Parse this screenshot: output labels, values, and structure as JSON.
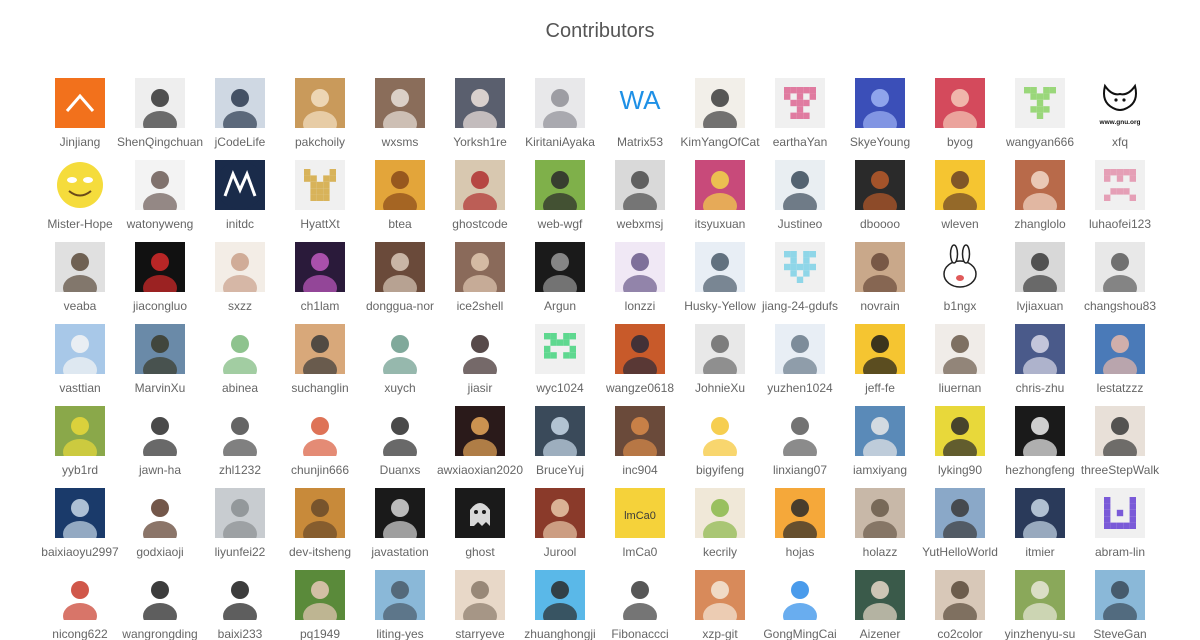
{
  "header": {
    "title": "Contributors"
  },
  "contributors": [
    {
      "login": "Jinjiang",
      "avatar": {
        "style": "chevron",
        "bg": "#f2711c",
        "fg": "#ffffff"
      }
    },
    {
      "login": "ShenQingchuan",
      "avatar": {
        "style": "photo",
        "bg": "#eeeeee",
        "fg": "#333333"
      }
    },
    {
      "login": "jCodeLife",
      "avatar": {
        "style": "photo",
        "bg": "#cfd8e3",
        "fg": "#2b3a4f"
      }
    },
    {
      "login": "pakchoily",
      "avatar": {
        "style": "photo",
        "bg": "#c99a5b",
        "fg": "#f3e1c4"
      }
    },
    {
      "login": "wxsms",
      "avatar": {
        "style": "photo",
        "bg": "#8a6d5a",
        "fg": "#e9e2da"
      }
    },
    {
      "login": "Yorksh1re",
      "avatar": {
        "style": "photo",
        "bg": "#5a5f6e",
        "fg": "#f0e4de"
      }
    },
    {
      "login": "KiritaniAyaka",
      "avatar": {
        "style": "photo",
        "bg": "#e8e8ea",
        "fg": "#8f8f96"
      }
    },
    {
      "login": "Matrix53",
      "avatar": {
        "style": "text",
        "text": "WA",
        "bg": "#ffffff",
        "fg": "#1e90e6"
      }
    },
    {
      "login": "KimYangOfCat",
      "avatar": {
        "style": "photo",
        "bg": "#f2efe9",
        "fg": "#3c3c3c"
      }
    },
    {
      "login": "earthaYan",
      "avatar": {
        "style": "identicon",
        "bg": "#f0f0f0",
        "fg": "#e07ba0",
        "pattern": [
          1,
          1,
          1,
          1,
          1,
          1,
          0,
          1,
          0,
          1,
          0,
          1,
          1,
          1,
          0,
          0,
          0,
          1,
          0,
          0,
          0,
          1,
          1,
          1,
          0
        ]
      }
    },
    {
      "login": "SkyeYoung",
      "avatar": {
        "style": "photo",
        "bg": "#3b4fb8",
        "fg": "#9fb3f5"
      }
    },
    {
      "login": "byog",
      "avatar": {
        "style": "photo",
        "bg": "#d44a5c",
        "fg": "#f5c9b8"
      }
    },
    {
      "login": "wangyan666",
      "avatar": {
        "style": "identicon",
        "bg": "#f0f0f0",
        "fg": "#9ad77a",
        "pattern": [
          1,
          1,
          0,
          1,
          1,
          0,
          1,
          1,
          1,
          0,
          0,
          0,
          1,
          0,
          0,
          0,
          1,
          1,
          1,
          0,
          0,
          0,
          1,
          0,
          0
        ]
      }
    },
    {
      "login": "xfq",
      "avatar": {
        "style": "gnu",
        "bg": "#ffffff",
        "fg": "#111111",
        "text": "www.gnu.org"
      }
    },
    {
      "login": "Mister-Hope",
      "avatar": {
        "style": "smiley",
        "bg": "#ffffff",
        "fg": "#f5dc3c"
      }
    },
    {
      "login": "watonyweng",
      "avatar": {
        "style": "photo",
        "bg": "#f3f3f3",
        "fg": "#6b5a55"
      }
    },
    {
      "login": "initdc",
      "avatar": {
        "style": "moto",
        "bg": "#1a2b4a",
        "fg": "#ffffff"
      }
    },
    {
      "login": "HyattXt",
      "avatar": {
        "style": "identicon",
        "bg": "#f0f0f0",
        "fg": "#d8b35a",
        "pattern": [
          1,
          0,
          0,
          0,
          1,
          1,
          1,
          0,
          1,
          1,
          0,
          1,
          1,
          1,
          0,
          0,
          1,
          1,
          1,
          0,
          0,
          1,
          1,
          1,
          0
        ]
      }
    },
    {
      "login": "btea",
      "avatar": {
        "style": "photo",
        "bg": "#e3a53a",
        "fg": "#8a4a1a"
      }
    },
    {
      "login": "ghostcode",
      "avatar": {
        "style": "photo",
        "bg": "#d8c8b0",
        "fg": "#b03030"
      }
    },
    {
      "login": "web-wgf",
      "avatar": {
        "style": "photo",
        "bg": "#7fb04a",
        "fg": "#2a2a2a"
      }
    },
    {
      "login": "webxmsj",
      "avatar": {
        "style": "photo",
        "bg": "#d9d9d9",
        "fg": "#4a4a4a"
      }
    },
    {
      "login": "itsyuxuan",
      "avatar": {
        "style": "photo",
        "bg": "#c84a7a",
        "fg": "#f2d34a"
      }
    },
    {
      "login": "Justineo",
      "avatar": {
        "style": "photo",
        "bg": "#e9eef2",
        "fg": "#3a4a5a"
      }
    },
    {
      "login": "dboooo",
      "avatar": {
        "style": "photo",
        "bg": "#2a2a2a",
        "fg": "#b85a2a"
      }
    },
    {
      "login": "wleven",
      "avatar": {
        "style": "photo",
        "bg": "#f5c531",
        "fg": "#6b4226"
      }
    },
    {
      "login": "zhanglolo",
      "avatar": {
        "style": "photo",
        "bg": "#b86a4a",
        "fg": "#f2d8c8"
      }
    },
    {
      "login": "luhaofei123",
      "avatar": {
        "style": "identicon",
        "bg": "#f0f0f0",
        "fg": "#e59fb6",
        "pattern": [
          1,
          1,
          1,
          1,
          1,
          1,
          0,
          1,
          0,
          1,
          0,
          0,
          0,
          0,
          0,
          0,
          1,
          1,
          1,
          0,
          1,
          0,
          0,
          0,
          1
        ]
      }
    },
    {
      "login": "veaba",
      "avatar": {
        "style": "photo",
        "bg": "#e0e0e0",
        "fg": "#5a4a3a"
      }
    },
    {
      "login": "jiacongluo",
      "avatar": {
        "style": "photo",
        "bg": "#111111",
        "fg": "#d62a2a"
      }
    },
    {
      "login": "sxzz",
      "avatar": {
        "style": "photo",
        "bg": "#f3ede6",
        "fg": "#c9a08a"
      }
    },
    {
      "login": "ch1lam",
      "avatar": {
        "style": "photo",
        "bg": "#2a1a3a",
        "fg": "#c05ac0"
      }
    },
    {
      "login": "donggua-nor",
      "avatar": {
        "style": "photo",
        "bg": "#6a4a3a",
        "fg": "#d9c8b8"
      }
    },
    {
      "login": "ice2shell",
      "avatar": {
        "style": "photo",
        "bg": "#8a6a5a",
        "fg": "#e0c8b0"
      }
    },
    {
      "login": "Argun",
      "avatar": {
        "style": "photo",
        "bg": "#1a1a1a",
        "fg": "#9a9a9a"
      }
    },
    {
      "login": "lonzzi",
      "avatar": {
        "style": "photo",
        "bg": "#f0e8f5",
        "fg": "#6a5a8a"
      }
    },
    {
      "login": "Husky-Yellow",
      "avatar": {
        "style": "photo",
        "bg": "#e8eef5",
        "fg": "#4a5a6a"
      }
    },
    {
      "login": "jiang-24-gdufs",
      "avatar": {
        "style": "identicon",
        "bg": "#f0f0f0",
        "fg": "#8fd6e8",
        "pattern": [
          1,
          1,
          0,
          1,
          1,
          0,
          1,
          0,
          1,
          0,
          1,
          1,
          1,
          1,
          1,
          0,
          1,
          0,
          1,
          0,
          0,
          0,
          1,
          0,
          0
        ]
      }
    },
    {
      "login": "novrain",
      "avatar": {
        "style": "photo",
        "bg": "#c9a88a",
        "fg": "#6a4a3a"
      }
    },
    {
      "login": "b1ngx",
      "avatar": {
        "style": "bunny",
        "bg": "#ffffff",
        "fg": "#222222"
      }
    },
    {
      "login": "lvjiaxuan",
      "avatar": {
        "style": "photo",
        "bg": "#d8d8d8",
        "fg": "#3a3a3a"
      }
    },
    {
      "login": "changshou83",
      "avatar": {
        "style": "photo",
        "bg": "#e8e8e8",
        "fg": "#5a5a5a"
      }
    },
    {
      "login": "vasttian",
      "avatar": {
        "style": "photo",
        "bg": "#a8c8e8",
        "fg": "#f5f5f5"
      }
    },
    {
      "login": "MarvinXu",
      "avatar": {
        "style": "photo",
        "bg": "#6a8aa8",
        "fg": "#3a3a2a"
      }
    },
    {
      "login": "abinea",
      "avatar": {
        "style": "photo",
        "bg": "#ffffff",
        "fg": "#7ab87a"
      }
    },
    {
      "login": "suchanglin",
      "avatar": {
        "style": "photo",
        "bg": "#d8a87a",
        "fg": "#3a3a3a"
      }
    },
    {
      "login": "xuych",
      "avatar": {
        "style": "photo",
        "bg": "#ffffff",
        "fg": "#6a9a8a"
      }
    },
    {
      "login": "jiasir",
      "avatar": {
        "style": "photo",
        "bg": "#ffffff",
        "fg": "#3a2a2a"
      }
    },
    {
      "login": "wyc1024",
      "avatar": {
        "style": "identicon",
        "bg": "#f0f0f0",
        "fg": "#5ed88f",
        "pattern": [
          1,
          1,
          0,
          1,
          1,
          0,
          1,
          1,
          1,
          0,
          1,
          0,
          0,
          0,
          1,
          1,
          1,
          0,
          1,
          1,
          0,
          0,
          0,
          0,
          0
        ]
      }
    },
    {
      "login": "wangze0618",
      "avatar": {
        "style": "photo",
        "bg": "#c85a2a",
        "fg": "#2a2a3a"
      }
    },
    {
      "login": "JohnieXu",
      "avatar": {
        "style": "photo",
        "bg": "#e8e8e8",
        "fg": "#6a6a6a"
      }
    },
    {
      "login": "yuzhen1024",
      "avatar": {
        "style": "photo",
        "bg": "#e8eef5",
        "fg": "#6a7a8a"
      }
    },
    {
      "login": "jeff-fe",
      "avatar": {
        "style": "photo",
        "bg": "#f5c531",
        "fg": "#1a1a1a"
      }
    },
    {
      "login": "liuernan",
      "avatar": {
        "style": "photo",
        "bg": "#f0ece8",
        "fg": "#6a5a4a"
      }
    },
    {
      "login": "chris-zhu",
      "avatar": {
        "style": "photo",
        "bg": "#4a5a8a",
        "fg": "#d8d8e8"
      }
    },
    {
      "login": "lestatzzz",
      "avatar": {
        "style": "photo",
        "bg": "#4a7ab8",
        "fg": "#e8b8a8"
      }
    },
    {
      "login": "yyb1rd",
      "avatar": {
        "style": "photo",
        "bg": "#8aa84a",
        "fg": "#e8d83a"
      }
    },
    {
      "login": "jawn-ha",
      "avatar": {
        "style": "photo",
        "bg": "#ffffff",
        "fg": "#2a2a2a"
      }
    },
    {
      "login": "zhl1232",
      "avatar": {
        "style": "photo",
        "bg": "#ffffff",
        "fg": "#4a4a4a"
      }
    },
    {
      "login": "chunjin666",
      "avatar": {
        "style": "photo",
        "bg": "#ffffff",
        "fg": "#d85a3a"
      }
    },
    {
      "login": "Duanxs",
      "avatar": {
        "style": "photo",
        "bg": "#ffffff",
        "fg": "#2a2a2a"
      }
    },
    {
      "login": "awxiaoxian2020",
      "avatar": {
        "style": "photo",
        "bg": "#2a1a1a",
        "fg": "#e8a85a"
      }
    },
    {
      "login": "BruceYuj",
      "avatar": {
        "style": "photo",
        "bg": "#3a4a5a",
        "fg": "#c8d8e8"
      }
    },
    {
      "login": "inc904",
      "avatar": {
        "style": "photo",
        "bg": "#6a4a3a",
        "fg": "#d88a4a"
      }
    },
    {
      "login": "bigyifeng",
      "avatar": {
        "style": "photo",
        "bg": "#ffffff",
        "fg": "#f5c531"
      }
    },
    {
      "login": "linxiang07",
      "avatar": {
        "style": "photo",
        "bg": "#ffffff",
        "fg": "#5a5a5a"
      }
    },
    {
      "login": "iamxiyang",
      "avatar": {
        "style": "photo",
        "bg": "#5a8ab8",
        "fg": "#e8e8e8"
      }
    },
    {
      "login": "lyking90",
      "avatar": {
        "style": "photo",
        "bg": "#e8d83a",
        "fg": "#2a2a2a"
      }
    },
    {
      "login": "hezhongfeng",
      "avatar": {
        "style": "photo",
        "bg": "#1a1a1a",
        "fg": "#f0f0f0"
      }
    },
    {
      "login": "threeStepWalk",
      "avatar": {
        "style": "photo",
        "bg": "#e8e0d8",
        "fg": "#3a3a3a"
      }
    },
    {
      "login": "baixiaoyu2997",
      "avatar": {
        "style": "photo",
        "bg": "#1a3a6a",
        "fg": "#c8d8e8"
      }
    },
    {
      "login": "godxiaoji",
      "avatar": {
        "style": "photo",
        "bg": "#ffffff",
        "fg": "#5a3a2a"
      }
    },
    {
      "login": "liyunfei22",
      "avatar": {
        "style": "photo",
        "bg": "#c8ccd0",
        "fg": "#8a8e92"
      }
    },
    {
      "login": "dev-itsheng",
      "avatar": {
        "style": "photo",
        "bg": "#c88a3a",
        "fg": "#6a4a2a"
      }
    },
    {
      "login": "javastation",
      "avatar": {
        "style": "photo",
        "bg": "#1a1a1a",
        "fg": "#d8d8d8"
      }
    },
    {
      "login": "ghost",
      "avatar": {
        "style": "ghost",
        "bg": "#1a1a1a",
        "fg": "#d8d8d8"
      }
    },
    {
      "login": "Jurool",
      "avatar": {
        "style": "photo",
        "bg": "#8a3a2a",
        "fg": "#e8c8a8"
      }
    },
    {
      "login": "lmCa0",
      "avatar": {
        "style": "text",
        "text": "lmCa0",
        "bg": "#f5d23a",
        "fg": "#3a3a3a"
      }
    },
    {
      "login": "kecrily",
      "avatar": {
        "style": "photo",
        "bg": "#f0e8d8",
        "fg": "#8ab84a"
      }
    },
    {
      "login": "hojas",
      "avatar": {
        "style": "photo",
        "bg": "#f5a83a",
        "fg": "#2a2a2a"
      }
    },
    {
      "login": "holazz",
      "avatar": {
        "style": "photo",
        "bg": "#c8b8a8",
        "fg": "#6a5a4a"
      }
    },
    {
      "login": "YutHelloWorld",
      "avatar": {
        "style": "photo",
        "bg": "#8aa8c8",
        "fg": "#3a3a3a"
      }
    },
    {
      "login": "itmier",
      "avatar": {
        "style": "photo",
        "bg": "#2a3a5a",
        "fg": "#c8d8e8"
      }
    },
    {
      "login": "abram-lin",
      "avatar": {
        "style": "identicon",
        "bg": "#f0f0f0",
        "fg": "#7a5ad8",
        "pattern": [
          1,
          0,
          0,
          0,
          1,
          1,
          0,
          0,
          0,
          1,
          1,
          0,
          1,
          0,
          1,
          1,
          0,
          0,
          0,
          1,
          1,
          1,
          1,
          1,
          1
        ]
      }
    },
    {
      "login": "nicong622",
      "avatar": {
        "style": "photo",
        "bg": "#ffffff",
        "fg": "#c83a2a"
      }
    },
    {
      "login": "wangrongding",
      "avatar": {
        "style": "photo",
        "bg": "#ffffff",
        "fg": "#1a1a1a"
      }
    },
    {
      "login": "baixi233",
      "avatar": {
        "style": "photo",
        "bg": "#ffffff",
        "fg": "#1a1a1a"
      }
    },
    {
      "login": "pq1949",
      "avatar": {
        "style": "photo",
        "bg": "#5a8a3a",
        "fg": "#e8c8b8"
      }
    },
    {
      "login": "liting-yes",
      "avatar": {
        "style": "photo",
        "bg": "#8ab8d8",
        "fg": "#4a5a6a"
      }
    },
    {
      "login": "starryeve",
      "avatar": {
        "style": "photo",
        "bg": "#e8d8c8",
        "fg": "#8a7a6a"
      }
    },
    {
      "login": "zhuanghongji",
      "avatar": {
        "style": "photo",
        "bg": "#5ab8e8",
        "fg": "#2a2a2a"
      }
    },
    {
      "login": "Fibonaccci",
      "avatar": {
        "style": "photo",
        "bg": "#ffffff",
        "fg": "#3a3a3a"
      }
    },
    {
      "login": "xzp-git",
      "avatar": {
        "style": "photo",
        "bg": "#d88a5a",
        "fg": "#f5e8d8"
      }
    },
    {
      "login": "GongMingCai",
      "avatar": {
        "style": "photo",
        "bg": "#ffffff",
        "fg": "#2a8ae8"
      }
    },
    {
      "login": "Aizener",
      "avatar": {
        "style": "photo",
        "bg": "#3a5a4a",
        "fg": "#e8d8c8"
      }
    },
    {
      "login": "co2color",
      "avatar": {
        "style": "photo",
        "bg": "#d8c8b8",
        "fg": "#5a4a3a"
      }
    },
    {
      "login": "yinzhenyu-su",
      "avatar": {
        "style": "photo",
        "bg": "#8aa85a",
        "fg": "#e8e8d8"
      }
    },
    {
      "login": "SteveGan",
      "avatar": {
        "style": "photo",
        "bg": "#8ab8d8",
        "fg": "#3a4a5a"
      }
    }
  ]
}
